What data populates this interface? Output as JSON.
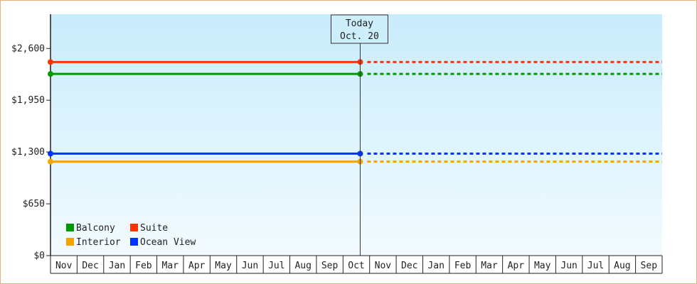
{
  "chart_data": {
    "type": "line",
    "title": "",
    "xlabel": "",
    "ylabel": "",
    "ylim": [
      0,
      3030
    ],
    "y_ticks": [
      0,
      650,
      1300,
      1950,
      2600
    ],
    "y_tick_labels": [
      "$0",
      "$650",
      "$1,300",
      "$1,950",
      "$2,600"
    ],
    "months": [
      "Nov",
      "Dec",
      "Jan",
      "Feb",
      "Mar",
      "Apr",
      "May",
      "Jun",
      "Jul",
      "Aug",
      "Sep",
      "Oct",
      "Nov",
      "Dec",
      "Jan",
      "Feb",
      "Mar",
      "Apr",
      "May",
      "Jun",
      "Jul",
      "Aug",
      "Sep"
    ],
    "today": {
      "label": "Today",
      "date": "Oct. 20",
      "month_index": 11
    },
    "series": [
      {
        "name": "Suite",
        "color": "#ff3300",
        "value": 2430
      },
      {
        "name": "Balcony",
        "color": "#009900",
        "value": 2280
      },
      {
        "name": "Ocean View",
        "color": "#0033ff",
        "value": 1280
      },
      {
        "name": "Interior",
        "color": "#f5a300",
        "value": 1180
      }
    ],
    "legend": [
      "Balcony",
      "Suite",
      "Interior",
      "Ocean View"
    ],
    "legend_position": "bottom-left",
    "historical_style": "solid",
    "projected_style": "dotted",
    "background_color": "#cdeefb"
  }
}
